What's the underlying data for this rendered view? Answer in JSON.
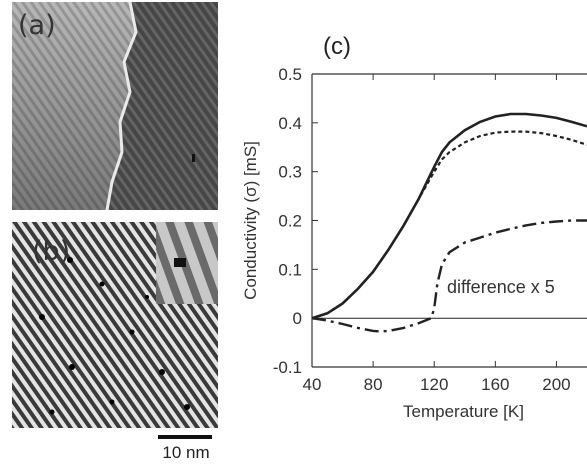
{
  "panels": {
    "a_label": "(a)",
    "b_label": "(b)",
    "c_label": "(c)",
    "scale_bar": "10 nm"
  },
  "chart_data": {
    "type": "line",
    "title": "",
    "panel_label": "(c)",
    "xlabel": "Temperature [K]",
    "ylabel": "Conductivity (σ) [mS]",
    "xlim": [
      40,
      220
    ],
    "ylim": [
      -0.1,
      0.5
    ],
    "xticks": [
      40,
      80,
      120,
      160,
      200
    ],
    "yticks": [
      -0.1,
      0,
      0.1,
      0.2,
      0.3,
      0.4,
      0.5
    ],
    "ytick_labels": [
      "-0.1",
      "0",
      "0.1",
      "0.2",
      "0.3",
      "0.4",
      "0.5"
    ],
    "grid": false,
    "annotation": "difference x 5",
    "series": [
      {
        "style": "solid",
        "x": [
          40,
          50,
          60,
          70,
          80,
          90,
          100,
          110,
          120,
          125,
          130,
          140,
          150,
          160,
          170,
          180,
          190,
          200,
          210,
          220
        ],
        "y": [
          0,
          0.01,
          0.03,
          0.06,
          0.095,
          0.14,
          0.19,
          0.245,
          0.31,
          0.34,
          0.36,
          0.385,
          0.402,
          0.413,
          0.418,
          0.418,
          0.415,
          0.41,
          0.402,
          0.393
        ]
      },
      {
        "style": "dotted",
        "x": [
          40,
          50,
          60,
          70,
          80,
          90,
          100,
          110,
          120,
          125,
          130,
          140,
          150,
          160,
          170,
          180,
          190,
          200,
          210,
          220
        ],
        "y": [
          0,
          0.01,
          0.03,
          0.06,
          0.095,
          0.14,
          0.19,
          0.245,
          0.3,
          0.325,
          0.34,
          0.36,
          0.373,
          0.38,
          0.382,
          0.382,
          0.379,
          0.373,
          0.365,
          0.355
        ]
      },
      {
        "style": "dash-dot",
        "x": [
          40,
          50,
          60,
          70,
          80,
          85,
          90,
          100,
          110,
          118,
          120,
          122,
          125,
          130,
          140,
          150,
          160,
          170,
          180,
          190,
          200,
          210,
          220
        ],
        "y": [
          0,
          -0.005,
          -0.012,
          -0.02,
          -0.026,
          -0.027,
          -0.026,
          -0.02,
          -0.01,
          0,
          0.02,
          0.07,
          0.11,
          0.135,
          0.155,
          0.165,
          0.175,
          0.183,
          0.19,
          0.195,
          0.198,
          0.2,
          0.2
        ]
      },
      {
        "style": "thin-solid",
        "x": [
          40,
          220
        ],
        "y": [
          0,
          0
        ]
      }
    ]
  }
}
